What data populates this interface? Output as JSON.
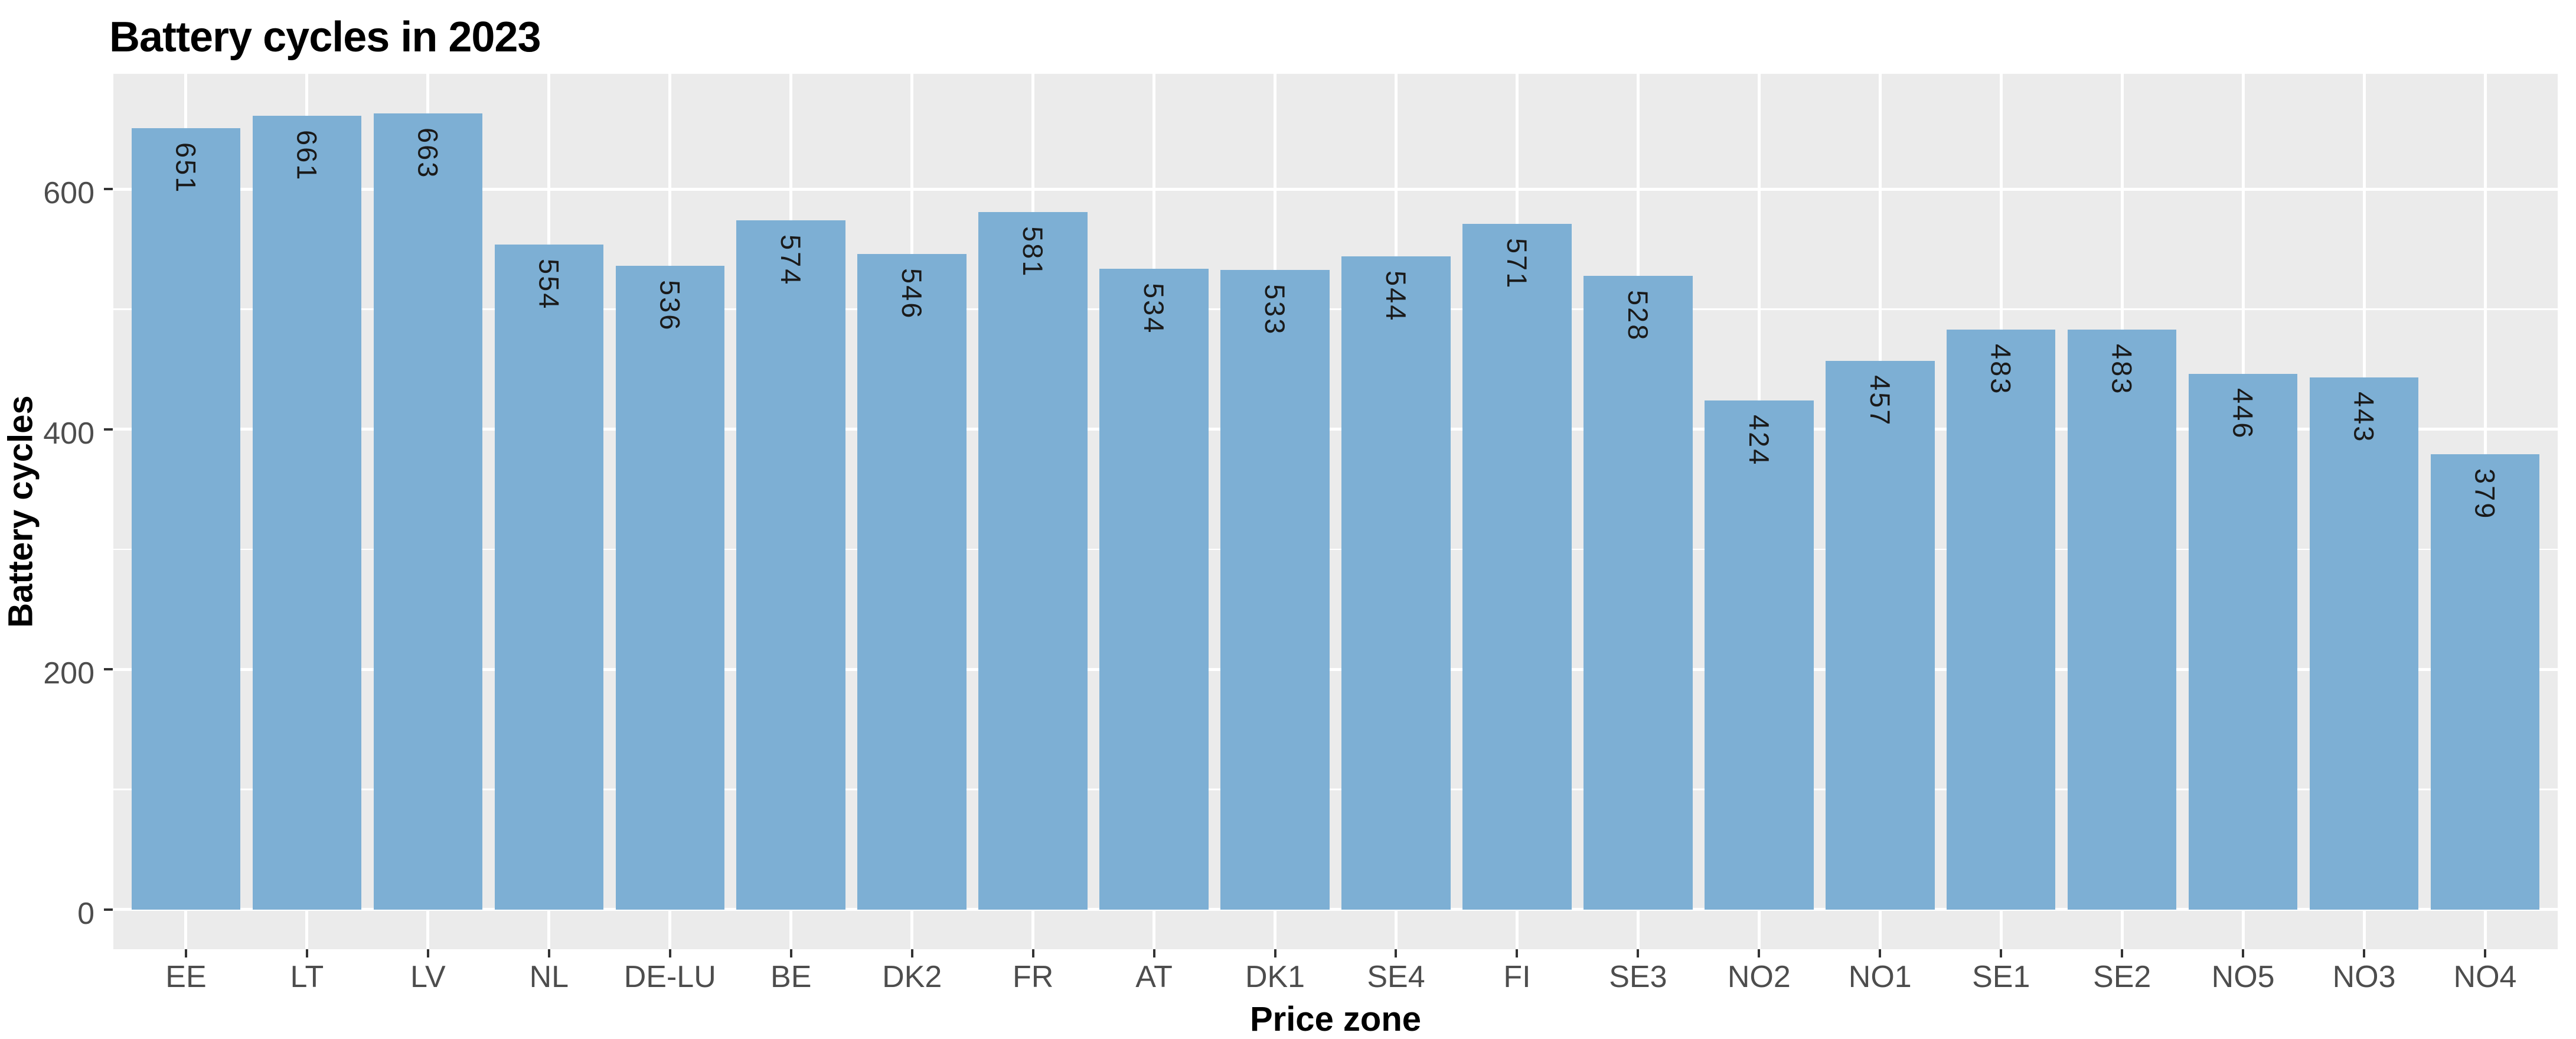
{
  "title": "Battery cycles in 2023",
  "chart_data": {
    "type": "bar",
    "title": "Battery cycles in 2023",
    "xlabel": "Price zone",
    "ylabel": "Battery cycles",
    "categories": [
      "EE",
      "LT",
      "LV",
      "NL",
      "DE-LU",
      "BE",
      "DK2",
      "FR",
      "AT",
      "DK1",
      "SE4",
      "FI",
      "SE3",
      "NO2",
      "NO1",
      "SE1",
      "SE2",
      "NO5",
      "NO3",
      "NO4"
    ],
    "values": [
      651,
      661,
      663,
      554,
      536,
      574,
      546,
      581,
      534,
      533,
      544,
      571,
      528,
      424,
      457,
      483,
      483,
      446,
      443,
      379
    ],
    "bar_labels": [
      "651",
      "661",
      "663",
      "554",
      "536",
      "574",
      "546",
      "581",
      "534",
      "533",
      "544",
      "571",
      "528",
      "424",
      "457",
      "483",
      "483",
      "446",
      "443",
      "379"
    ],
    "ylim": [
      0,
      663
    ],
    "yticks": [
      0,
      200,
      400,
      600
    ],
    "ytick_labels": [
      "0",
      "200",
      "400",
      "600"
    ],
    "yminor": [
      100,
      300,
      500
    ],
    "grid": "on",
    "legend": "none",
    "colors": {
      "bar_fill": "#7DAFD4",
      "panel_bg": "#EBEBEB",
      "gridline": "#FFFFFF",
      "tick_label": "#4D4D4D",
      "tick_mark": "#333333",
      "bar_label": "#1A1A1A",
      "title": "#000000"
    }
  }
}
